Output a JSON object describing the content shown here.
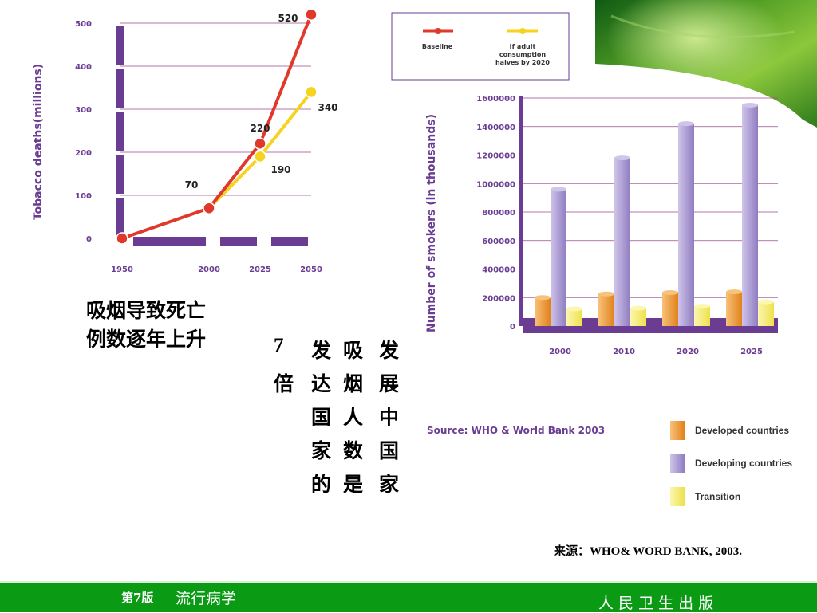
{
  "chart_data": [
    {
      "type": "line",
      "ylabel": "Tobacco deaths(millions)",
      "x": [
        "1950",
        "2000",
        "2025",
        "2050"
      ],
      "ylim": [
        0,
        500
      ],
      "yticks": [
        "0",
        "100",
        "200",
        "300",
        "400",
        "500"
      ],
      "series": [
        {
          "name": "Baseline",
          "color": "#e0392b",
          "values": [
            0,
            70,
            220,
            520
          ]
        },
        {
          "name": "If adult consumption halves by 2020",
          "color": "#f5d31e",
          "values": [
            null,
            70,
            190,
            340
          ]
        }
      ],
      "data_labels": [
        "70",
        "220",
        "190",
        "520",
        "340"
      ],
      "legend_position": "top"
    },
    {
      "type": "bar",
      "ylabel": "Number of smokers (in thousands)",
      "categories": [
        "2000",
        "2010",
        "2020",
        "2025"
      ],
      "ylim": [
        0,
        1600000
      ],
      "yticks": [
        "0",
        "200000",
        "400000",
        "600000",
        "800000",
        "1000000",
        "1200000",
        "1400000",
        "1600000"
      ],
      "series": [
        {
          "name": "Developed countries",
          "color": "#f0921e",
          "values": [
            200000,
            225000,
            235000,
            240000
          ]
        },
        {
          "name": "Developing countries",
          "color": "#a99ad0",
          "values": [
            960000,
            1180000,
            1420000,
            1550000
          ]
        },
        {
          "name": "Transition",
          "color": "#f5ec6a",
          "values": [
            120000,
            125000,
            140000,
            170000
          ]
        }
      ],
      "source": "Source: WHO & World Bank 2003",
      "legend_position": "bottom-right"
    }
  ],
  "texts": {
    "caption_left_line1": "吸烟导致死亡",
    "caption_left_line2": "例数逐年上升",
    "vertical_cols": [
      "发展中国家",
      "吸烟人数是",
      "发达国家的",
      "7倍"
    ],
    "source_cn": "来源：WHO& WORD BANK, 2003.",
    "footer_left_edition": "第7版",
    "footer_left_title": "流行病学",
    "footer_right": "人 民 卫 生 出 版"
  },
  "colors": {
    "purple": "#6a3d92",
    "footer_green": "#0a9a14",
    "grid": "#9a4c8c"
  }
}
